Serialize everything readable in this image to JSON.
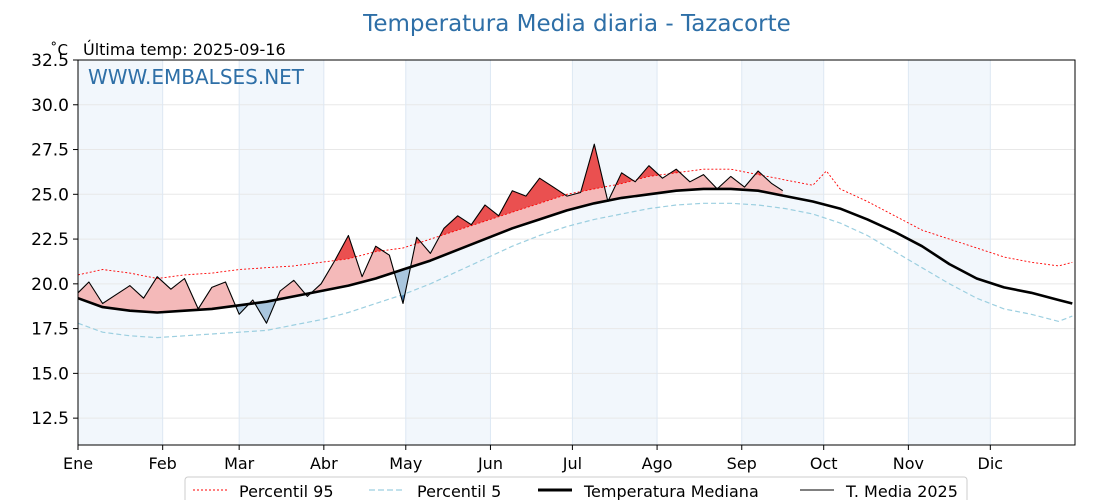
{
  "chart_data": {
    "type": "line",
    "title": "Temperatura Media diaria - Tazacorte",
    "unit": "˚C",
    "last_temp_label": "Última temp: 2025-09-16",
    "watermark": "WWW.EMBALSES.NET",
    "ylim": [
      11,
      32.5
    ],
    "yticks": [
      "12.5",
      "15.0",
      "17.5",
      "20.0",
      "22.5",
      "25.0",
      "27.5",
      "30.0",
      "32.5"
    ],
    "months": [
      "Ene",
      "Feb",
      "Mar",
      "Abr",
      "May",
      "Jun",
      "Jul",
      "Ago",
      "Sep",
      "Oct",
      "Nov",
      "Dic"
    ],
    "month_start_days": [
      1,
      32,
      60,
      91,
      121,
      152,
      182,
      213,
      244,
      274,
      305,
      335
    ],
    "xlim": [
      1,
      366
    ],
    "shaded_months": [
      "Ene",
      "Mar",
      "May",
      "Jul",
      "Sep",
      "Nov"
    ],
    "legend": [
      {
        "name": "Percentil 95",
        "color": "#ff0000",
        "style": "dotted"
      },
      {
        "name": "Percentil 5",
        "color": "#9ccfe0",
        "style": "dashed"
      },
      {
        "name": "Temperatura Mediana",
        "color": "#000000",
        "style": "solid-thick"
      },
      {
        "name": "T. Media 2025",
        "color": "#000000",
        "style": "solid-thin"
      }
    ],
    "series": [
      {
        "name": "Percentil 95",
        "color": "#ff0000",
        "x": [
          1,
          10,
          20,
          30,
          40,
          50,
          60,
          70,
          80,
          90,
          100,
          110,
          120,
          130,
          140,
          150,
          160,
          170,
          180,
          190,
          200,
          210,
          220,
          230,
          240,
          250,
          260,
          270,
          275,
          280,
          290,
          300,
          310,
          320,
          330,
          340,
          350,
          360,
          365
        ],
        "y": [
          20.5,
          20.8,
          20.6,
          20.3,
          20.5,
          20.6,
          20.8,
          20.9,
          21.0,
          21.2,
          21.4,
          21.8,
          22.0,
          22.5,
          23.0,
          23.5,
          24.0,
          24.5,
          25.0,
          25.3,
          25.6,
          26.0,
          26.2,
          26.4,
          26.4,
          26.1,
          25.8,
          25.5,
          26.3,
          25.3,
          24.6,
          23.8,
          23.0,
          22.5,
          22.0,
          21.5,
          21.2,
          21.0,
          21.2
        ]
      },
      {
        "name": "Percentil 5",
        "color": "#9ccfe0",
        "x": [
          1,
          10,
          20,
          30,
          40,
          50,
          60,
          70,
          80,
          90,
          100,
          110,
          120,
          130,
          140,
          150,
          160,
          170,
          180,
          190,
          200,
          210,
          220,
          230,
          240,
          250,
          260,
          270,
          280,
          290,
          300,
          310,
          320,
          330,
          340,
          350,
          360,
          365
        ],
        "y": [
          17.8,
          17.3,
          17.1,
          17.0,
          17.1,
          17.2,
          17.3,
          17.4,
          17.7,
          18.0,
          18.4,
          18.9,
          19.4,
          20.0,
          20.7,
          21.4,
          22.1,
          22.7,
          23.2,
          23.6,
          23.9,
          24.2,
          24.4,
          24.5,
          24.5,
          24.4,
          24.2,
          23.9,
          23.4,
          22.7,
          21.8,
          20.9,
          20.0,
          19.2,
          18.6,
          18.3,
          17.9,
          18.2
        ]
      },
      {
        "name": "Temperatura Mediana",
        "color": "#000000",
        "x": [
          1,
          10,
          20,
          30,
          40,
          50,
          60,
          70,
          80,
          90,
          100,
          110,
          120,
          130,
          140,
          150,
          160,
          170,
          180,
          190,
          200,
          210,
          220,
          230,
          240,
          250,
          260,
          270,
          280,
          290,
          300,
          310,
          320,
          330,
          340,
          350,
          360,
          365
        ],
        "y": [
          19.2,
          18.7,
          18.5,
          18.4,
          18.5,
          18.6,
          18.8,
          19.0,
          19.3,
          19.6,
          19.9,
          20.3,
          20.8,
          21.3,
          21.9,
          22.5,
          23.1,
          23.6,
          24.1,
          24.5,
          24.8,
          25.0,
          25.2,
          25.3,
          25.3,
          25.2,
          24.9,
          24.6,
          24.2,
          23.6,
          22.9,
          22.1,
          21.1,
          20.3,
          19.8,
          19.5,
          19.1,
          18.9
        ]
      },
      {
        "name": "T. Media 2025",
        "color": "#000000",
        "x": [
          1,
          5,
          10,
          15,
          20,
          25,
          30,
          35,
          40,
          45,
          50,
          55,
          60,
          65,
          70,
          75,
          80,
          85,
          90,
          95,
          100,
          105,
          110,
          115,
          120,
          125,
          130,
          135,
          140,
          145,
          150,
          155,
          160,
          165,
          170,
          175,
          180,
          185,
          190,
          195,
          200,
          205,
          210,
          215,
          220,
          225,
          230,
          235,
          240,
          245,
          250,
          255,
          259
        ],
        "y": [
          19.5,
          20.1,
          18.9,
          19.4,
          19.9,
          19.2,
          20.4,
          19.7,
          20.3,
          18.6,
          19.8,
          20.1,
          18.3,
          19.1,
          17.8,
          19.6,
          20.2,
          19.3,
          20.0,
          21.3,
          22.7,
          20.4,
          22.1,
          21.6,
          18.9,
          22.6,
          21.7,
          23.1,
          23.8,
          23.3,
          24.4,
          23.8,
          25.2,
          24.9,
          25.9,
          25.4,
          24.9,
          25.1,
          27.8,
          24.6,
          26.2,
          25.7,
          26.6,
          25.9,
          26.4,
          25.7,
          26.1,
          25.3,
          26.0,
          25.4,
          26.3,
          25.6,
          25.2
        ]
      }
    ]
  }
}
